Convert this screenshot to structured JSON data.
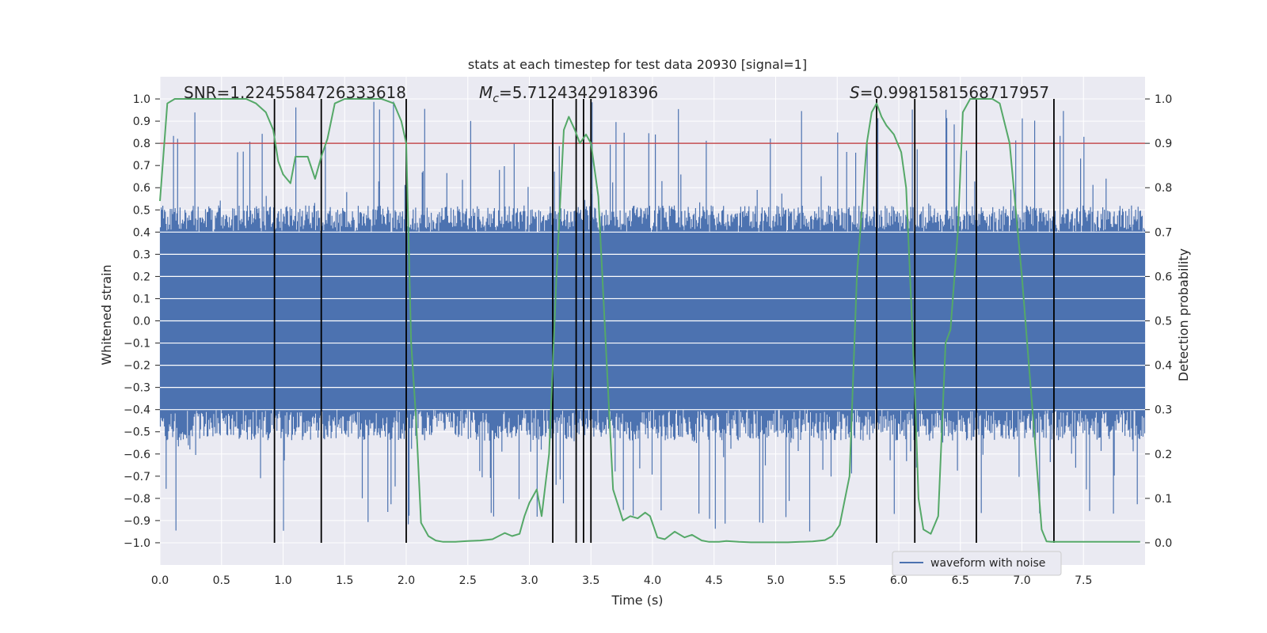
{
  "chart_data": {
    "type": "line",
    "title": "stats at each timestep for test data 20930 [signal=1]",
    "xlabel": "Time (s)",
    "ylabel": "Whitened strain",
    "y2label": "Detection probability",
    "xlim": [
      0,
      8
    ],
    "ylim": [
      -1.1,
      1.1
    ],
    "y2lim": [
      -0.05,
      1.05
    ],
    "x_ticks": [
      0.0,
      0.5,
      1.0,
      1.5,
      2.0,
      2.5,
      3.0,
      3.5,
      4.0,
      4.5,
      5.0,
      5.5,
      6.0,
      6.5,
      7.0,
      7.5
    ],
    "x_tick_labels": [
      "0.0",
      "0.5",
      "1.0",
      "1.5",
      "2.0",
      "2.5",
      "3.0",
      "3.5",
      "4.0",
      "4.5",
      "5.0",
      "5.5",
      "6.0",
      "6.5",
      "7.0",
      "7.5"
    ],
    "y_ticks": [
      1.0,
      0.9,
      0.8,
      0.7,
      0.6,
      0.5,
      0.4,
      0.3,
      0.2,
      0.1,
      0.0,
      -0.1,
      -0.2,
      -0.3,
      -0.4,
      -0.5,
      -0.6,
      -0.7,
      -0.8,
      -0.9,
      -1.0
    ],
    "y_tick_labels": [
      "1.0",
      "0.9",
      "0.8",
      "0.7",
      "0.6",
      "0.5",
      "0.4",
      "0.3",
      "0.2",
      "0.1",
      "0.0",
      "−0.1",
      "−0.2",
      "−0.3",
      "−0.4",
      "−0.5",
      "−0.6",
      "−0.7",
      "−0.8",
      "−0.9",
      "−1.0"
    ],
    "y2_ticks": [
      1.0,
      0.9,
      0.8,
      0.7,
      0.6,
      0.5,
      0.4,
      0.3,
      0.2,
      0.1,
      0.0
    ],
    "y2_tick_labels": [
      "1.0",
      "0.9",
      "0.8",
      "0.7",
      "0.6",
      "0.5",
      "0.4",
      "0.3",
      "0.2",
      "0.1",
      "0.0"
    ],
    "grid": true,
    "annotations": {
      "snr": "SNR=1.2245584726333618",
      "mc_symbol": "M",
      "mc_sub": "c",
      "mc_value": "=5.7124342918396",
      "s_symbol": "S",
      "s_value": "=0.9981581568717957"
    },
    "threshold": {
      "y2": 0.9,
      "color": "#c44e52"
    },
    "vertical_lines_x": [
      0.93,
      1.31,
      2.0,
      3.19,
      3.38,
      3.44,
      3.5,
      5.82,
      6.13,
      6.63,
      7.26
    ],
    "legend": {
      "label": "waveform with noise",
      "position": "bottom-right"
    },
    "colors": {
      "waveform": "#4c72b0",
      "probability": "#55a868",
      "vlines": "#000000",
      "plot_bg": "#eaeaf2",
      "grid": "#ffffff"
    },
    "series": [
      {
        "name": "waveform with noise",
        "kind": "noise_envelope",
        "axis": "left",
        "typical_range": [
          -0.4,
          0.4
        ],
        "extreme_range": [
          -0.95,
          0.99
        ]
      },
      {
        "name": "Detection probability",
        "axis": "right",
        "x": [
          0.0,
          0.06,
          0.12,
          0.2,
          0.3,
          0.4,
          0.5,
          0.6,
          0.7,
          0.78,
          0.86,
          0.92,
          0.96,
          1.0,
          1.06,
          1.1,
          1.14,
          1.2,
          1.26,
          1.31,
          1.36,
          1.42,
          1.5,
          1.6,
          1.7,
          1.8,
          1.9,
          1.96,
          2.0,
          2.04,
          2.08,
          2.12,
          2.18,
          2.24,
          2.3,
          2.4,
          2.5,
          2.6,
          2.7,
          2.8,
          2.86,
          2.92,
          2.96,
          3.0,
          3.06,
          3.1,
          3.16,
          3.22,
          3.28,
          3.32,
          3.37,
          3.41,
          3.46,
          3.5,
          3.56,
          3.62,
          3.68,
          3.76,
          3.82,
          3.88,
          3.94,
          3.98,
          4.04,
          4.1,
          4.18,
          4.26,
          4.32,
          4.4,
          4.46,
          4.54,
          4.6,
          4.7,
          4.8,
          4.9,
          5.0,
          5.1,
          5.2,
          5.3,
          5.4,
          5.46,
          5.52,
          5.6,
          5.66,
          5.74,
          5.78,
          5.82,
          5.86,
          5.9,
          5.96,
          6.02,
          6.06,
          6.1,
          6.13,
          6.16,
          6.2,
          6.26,
          6.32,
          6.38,
          6.42,
          6.48,
          6.52,
          6.58,
          6.62,
          6.66,
          6.7,
          6.76,
          6.82,
          6.9,
          7.0,
          7.1,
          7.16,
          7.2,
          7.24,
          7.28,
          7.32,
          7.36,
          7.42,
          7.48,
          7.52,
          7.6,
          7.7,
          7.8,
          7.9,
          7.96
        ],
        "values": [
          0.77,
          0.99,
          1.0,
          1.0,
          1.0,
          1.0,
          1.0,
          1.0,
          1.0,
          0.99,
          0.97,
          0.93,
          0.86,
          0.83,
          0.81,
          0.87,
          0.87,
          0.87,
          0.82,
          0.87,
          0.91,
          0.99,
          1.0,
          1.0,
          1.0,
          1.0,
          0.99,
          0.95,
          0.9,
          0.45,
          0.28,
          0.045,
          0.015,
          0.005,
          0.002,
          0.002,
          0.004,
          0.005,
          0.008,
          0.022,
          0.015,
          0.02,
          0.06,
          0.09,
          0.12,
          0.06,
          0.2,
          0.6,
          0.93,
          0.96,
          0.93,
          0.9,
          0.92,
          0.9,
          0.78,
          0.45,
          0.12,
          0.05,
          0.06,
          0.055,
          0.068,
          0.06,
          0.012,
          0.008,
          0.025,
          0.012,
          0.018,
          0.005,
          0.002,
          0.002,
          0.004,
          0.002,
          0.001,
          0.001,
          0.001,
          0.001,
          0.002,
          0.003,
          0.006,
          0.015,
          0.04,
          0.15,
          0.6,
          0.9,
          0.97,
          0.99,
          0.96,
          0.94,
          0.92,
          0.88,
          0.8,
          0.55,
          0.35,
          0.1,
          0.03,
          0.02,
          0.06,
          0.45,
          0.48,
          0.7,
          0.97,
          1.0,
          1.0,
          1.0,
          1.0,
          1.0,
          0.99,
          0.9,
          0.6,
          0.25,
          0.03,
          0.003,
          0.002,
          0.002,
          0.002,
          0.002,
          0.002,
          0.002,
          0.002,
          0.002,
          0.002,
          0.002,
          0.002,
          0.002
        ]
      }
    ]
  }
}
